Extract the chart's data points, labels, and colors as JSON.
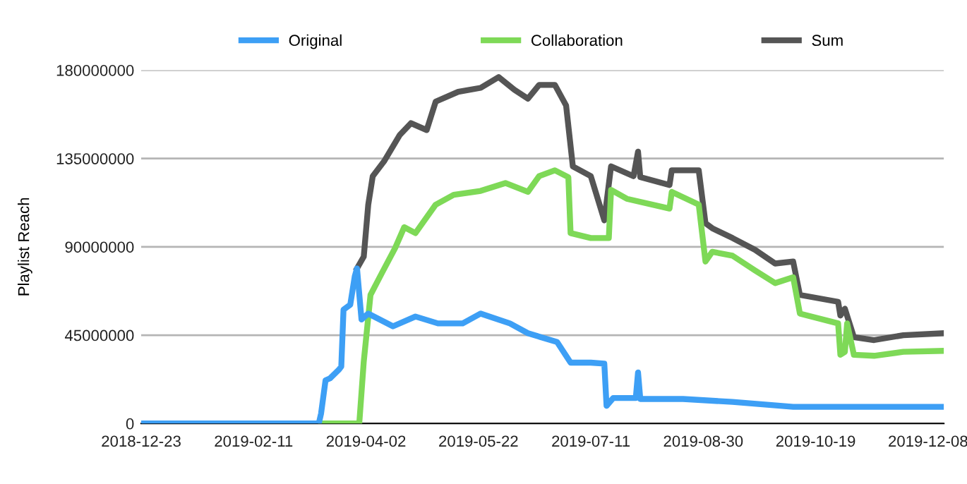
{
  "chart_data": {
    "type": "line",
    "ylabel": "Playlist Reach",
    "xlim": [
      "2018-12-23",
      "2019-12-15"
    ],
    "xticks": [
      "2018-12-23",
      "2019-02-11",
      "2019-04-02",
      "2019-05-22",
      "2019-07-11",
      "2019-08-30",
      "2019-10-19",
      "2019-12-08"
    ],
    "ylim": [
      0,
      180000000
    ],
    "yticks": [
      0,
      45000000,
      90000000,
      135000000,
      180000000
    ],
    "grid": "y",
    "legend": "top",
    "line_style": "solid",
    "marker": "none",
    "series": [
      {
        "name": "Original",
        "color": "#3d9ff5",
        "x": [
          "2018-12-23",
          "2019-03-12",
          "2019-03-13",
          "2019-03-15",
          "2019-03-17",
          "2019-03-21",
          "2019-03-22",
          "2019-03-23",
          "2019-03-26",
          "2019-03-28",
          "2019-03-29",
          "2019-03-31",
          "2019-04-03",
          "2019-04-14",
          "2019-04-24",
          "2019-05-04",
          "2019-05-15",
          "2019-05-23",
          "2019-06-05",
          "2019-06-13",
          "2019-06-26",
          "2019-07-02",
          "2019-07-11",
          "2019-07-17",
          "2019-07-18",
          "2019-07-21",
          "2019-07-31",
          "2019-08-01",
          "2019-08-02",
          "2019-08-21",
          "2019-09-12",
          "2019-10-09",
          "2019-10-30",
          "2019-11-27",
          "2019-12-15"
        ],
        "values": [
          0,
          0,
          5000000,
          22000000,
          23000000,
          27500000,
          29000000,
          58000000,
          60500000,
          75000000,
          79000000,
          53000000,
          56000000,
          49500000,
          54500000,
          51000000,
          51000000,
          56000000,
          51000000,
          46000000,
          41500000,
          31000000,
          31000000,
          30500000,
          9000000,
          13000000,
          13000000,
          26000000,
          12500000,
          12500000,
          11000000,
          8500000,
          8500000,
          8500000,
          8500000
        ]
      },
      {
        "name": "Collaboration",
        "color": "#7ed957",
        "x": [
          "2019-03-13",
          "2019-03-30",
          "2019-04-01",
          "2019-04-04",
          "2019-04-09",
          "2019-04-15",
          "2019-04-19",
          "2019-04-24",
          "2019-04-28",
          "2019-05-03",
          "2019-05-11",
          "2019-05-23",
          "2019-06-03",
          "2019-06-13",
          "2019-06-18",
          "2019-06-25",
          "2019-07-01",
          "2019-07-02",
          "2019-07-11",
          "2019-07-19",
          "2019-07-20",
          "2019-07-27",
          "2019-08-15",
          "2019-08-16",
          "2019-08-28",
          "2019-08-31",
          "2019-09-03",
          "2019-09-12",
          "2019-09-22",
          "2019-10-01",
          "2019-10-09",
          "2019-10-12",
          "2019-10-29",
          "2019-10-30",
          "2019-11-01",
          "2019-11-02",
          "2019-11-05",
          "2019-11-14",
          "2019-11-27",
          "2019-12-15"
        ],
        "values": [
          0,
          0,
          31500000,
          65500000,
          76500000,
          89500000,
          100000000,
          97000000,
          103500000,
          111500000,
          116500000,
          118500000,
          122500000,
          118000000,
          126000000,
          129000000,
          125500000,
          97000000,
          94500000,
          94500000,
          119000000,
          114500000,
          109500000,
          118000000,
          111500000,
          82500000,
          87500000,
          85500000,
          78000000,
          71500000,
          74500000,
          56000000,
          51000000,
          35000000,
          36500000,
          51000000,
          35000000,
          34500000,
          36500000,
          37000000
        ]
      },
      {
        "name": "Sum",
        "color": "#555555",
        "x": [
          "2019-03-29",
          "2019-04-01",
          "2019-04-03",
          "2019-04-05",
          "2019-04-10",
          "2019-04-17",
          "2019-04-22",
          "2019-04-29",
          "2019-05-03",
          "2019-05-13",
          "2019-05-23",
          "2019-05-31",
          "2019-06-07",
          "2019-06-13",
          "2019-06-18",
          "2019-06-25",
          "2019-06-30",
          "2019-07-03",
          "2019-07-11",
          "2019-07-17",
          "2019-07-20",
          "2019-07-30",
          "2019-08-01",
          "2019-08-02",
          "2019-08-15",
          "2019-08-16",
          "2019-08-28",
          "2019-08-31",
          "2019-09-03",
          "2019-09-12",
          "2019-09-22",
          "2019-10-01",
          "2019-10-09",
          "2019-10-12",
          "2019-10-29",
          "2019-10-30",
          "2019-11-01",
          "2019-11-05",
          "2019-11-14",
          "2019-11-27",
          "2019-12-15"
        ],
        "values": [
          79000000,
          85000000,
          111500000,
          126000000,
          133500000,
          147000000,
          153000000,
          149500000,
          164000000,
          169000000,
          171000000,
          176500000,
          170000000,
          165500000,
          172500000,
          172500000,
          162000000,
          131000000,
          126000000,
          103500000,
          131000000,
          126000000,
          138500000,
          125500000,
          121500000,
          129000000,
          129000000,
          102000000,
          99500000,
          94500000,
          88500000,
          81500000,
          82500000,
          65500000,
          62000000,
          55000000,
          58500000,
          44000000,
          42500000,
          45000000,
          46000000
        ]
      }
    ]
  }
}
